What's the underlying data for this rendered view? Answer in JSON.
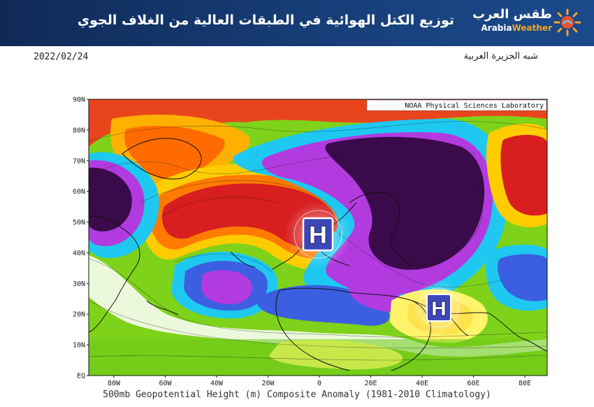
{
  "header": {
    "title": "توزيع الكتل الهوائية في الطبقات العالية من الغلاف الجوي",
    "brand_ar": "طقس العرب",
    "brand_en_a": "Arabia",
    "brand_en_b": "Weather"
  },
  "date": "2022/02/24",
  "region": "شبه الجزيرة العربية",
  "map": {
    "credit": "NOAA Physical Sciences Laboratory",
    "lat_labels": [
      "90N",
      "80N",
      "70N",
      "60N",
      "50N",
      "40N",
      "30N",
      "20N",
      "10N",
      "EQ"
    ],
    "lon_labels": [
      "80W",
      "60W",
      "40W",
      "20W",
      "0",
      "20E",
      "40E",
      "60E",
      "80E"
    ],
    "caption": "500mb Geopotential Height (m) Composite Anomaly (1981-2010 Climatology)",
    "pressure_centers": [
      {
        "label": "H",
        "lat": 47,
        "lon": 0
      },
      {
        "label": "H",
        "lat": 23,
        "lon": 47
      }
    ]
  }
}
